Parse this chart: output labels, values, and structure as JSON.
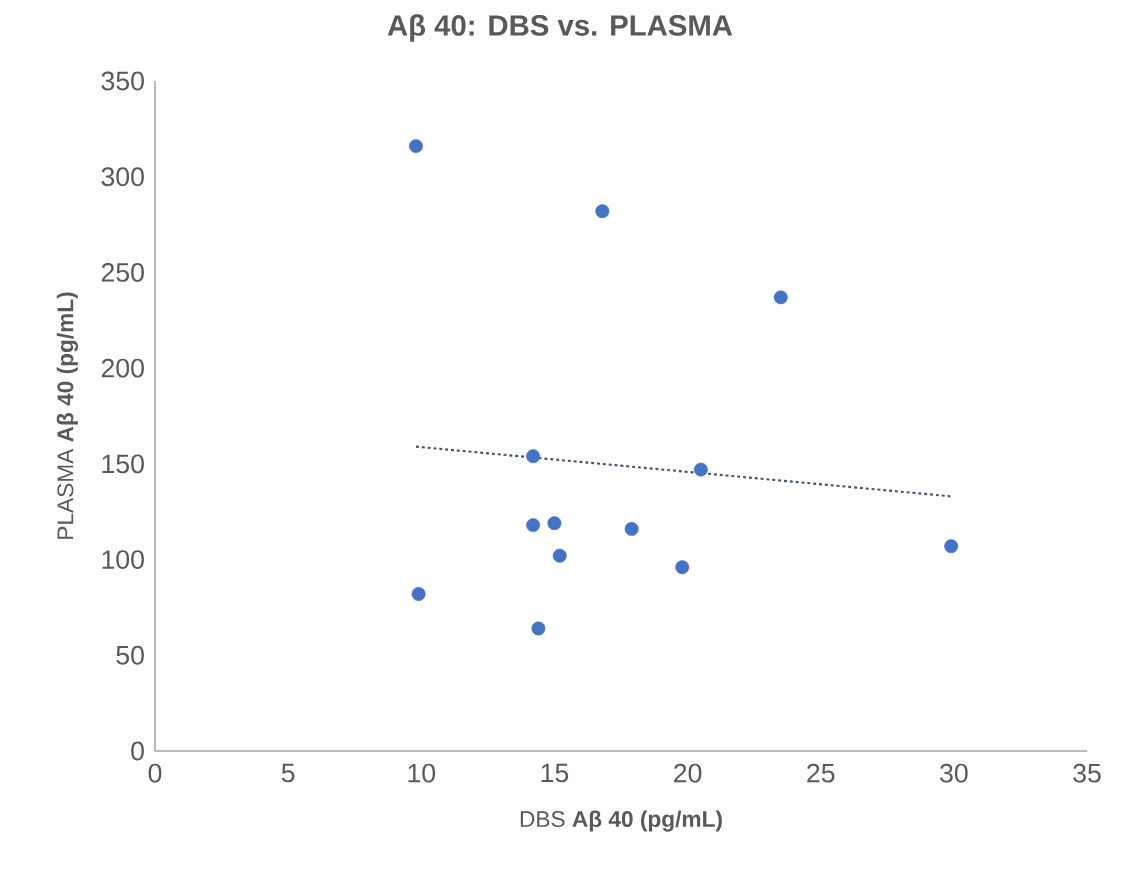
{
  "chart_data": {
    "type": "scatter",
    "title": "Aβ 40: DBS vs. PLASMA",
    "xlabel": "DBS **Aβ 40 (pg/mL)**",
    "ylabel": "PLASMA **Aβ 40 (pg/mL)**",
    "xlim": [
      0,
      35
    ],
    "xticks": [
      0,
      5,
      10,
      15,
      20,
      25,
      30,
      35
    ],
    "ylim": [
      0,
      350
    ],
    "yticks": [
      0,
      50,
      100,
      150,
      200,
      250,
      300,
      350
    ],
    "grid": false,
    "series": [
      {
        "marker": "circle",
        "color": "#4472c4",
        "x": [
          9.8,
          14.2,
          14.2,
          15.0,
          15.2,
          9.9,
          14.4,
          16.8,
          23.5,
          20.5,
          17.9,
          19.8,
          29.9
        ],
        "values": [
          316,
          154,
          118,
          119,
          102,
          82,
          64,
          282,
          237,
          147,
          116,
          96,
          107
        ]
      },
      {
        "type": "line",
        "marker": "none",
        "line_style": "dotted",
        "color": "#44546a",
        "x": [
          9.8,
          29.9
        ],
        "values": [
          159,
          133
        ]
      }
    ]
  }
}
